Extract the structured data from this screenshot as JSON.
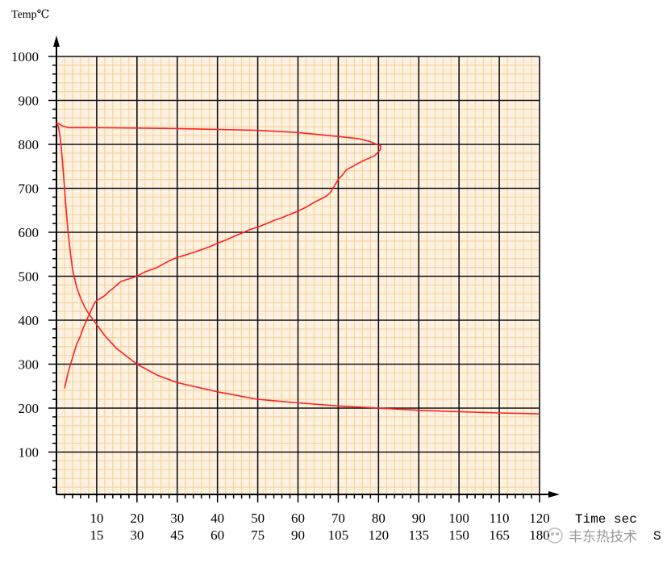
{
  "chart_data": {
    "type": "line",
    "ylabel": "Temp℃",
    "xlabel": "Time sec",
    "ylim": [
      0,
      1000
    ],
    "xlim": [
      0,
      120
    ],
    "y_ticks": [
      "100",
      "200",
      "300",
      "400",
      "500",
      "600",
      "700",
      "800",
      "900",
      "1000"
    ],
    "x_ticks_row1": [
      "10",
      "20",
      "30",
      "40",
      "50",
      "60",
      "70",
      "80",
      "90",
      "100",
      "110",
      "120"
    ],
    "x_ticks_row2": [
      "15",
      "30",
      "45",
      "60",
      "75",
      "90",
      "105",
      "120",
      "135",
      "150",
      "165",
      "180"
    ],
    "x_unit_row2": "S",
    "grid": true,
    "watermark": "丰东热技术",
    "series": [
      {
        "color": "#ff2020",
        "x": [
          0,
          1.5,
          3,
          5,
          10,
          20,
          30,
          40,
          50,
          60,
          70,
          75,
          78,
          79.5,
          80.5,
          80.5,
          79,
          76,
          74,
          72,
          71,
          70,
          69,
          68,
          67,
          66,
          64,
          62,
          60,
          58,
          56,
          54,
          52,
          50,
          48,
          46,
          44,
          42,
          40,
          38,
          35,
          32,
          30,
          28,
          25,
          22,
          20,
          18,
          16,
          15,
          14,
          13,
          12,
          11,
          10,
          9.5,
          9,
          8.5,
          8,
          7.5,
          7,
          6.5,
          6,
          5.5,
          5,
          4.5,
          4,
          3.5,
          3,
          2.5,
          2
        ],
        "y": [
          850,
          842,
          838,
          838,
          838,
          837,
          836,
          834,
          832,
          827,
          818,
          813,
          806,
          800,
          797,
          788,
          774,
          762,
          752,
          742,
          730,
          720,
          705,
          690,
          682,
          677,
          668,
          657,
          648,
          641,
          633,
          627,
          619,
          612,
          606,
          598,
          590,
          582,
          575,
          567,
          557,
          548,
          543,
          535,
          520,
          510,
          500,
          494,
          488,
          480,
          472,
          465,
          456,
          450,
          445,
          440,
          430,
          420,
          410,
          400,
          390,
          378,
          365,
          355,
          345,
          330,
          315,
          300,
          285,
          265,
          245
        ]
      },
      {
        "color": "#ff2020",
        "x": [
          0,
          0.5,
          1,
          1.5,
          2,
          2.5,
          3,
          3.5,
          4,
          5,
          6,
          7,
          8,
          10,
          12,
          15,
          20,
          25,
          30,
          40,
          50,
          60,
          70,
          80,
          90,
          100,
          110,
          120
        ],
        "y": [
          850,
          840,
          810,
          760,
          700,
          640,
          590,
          550,
          515,
          475,
          450,
          430,
          415,
          390,
          365,
          335,
          300,
          275,
          258,
          237,
          220,
          212,
          205,
          200,
          195,
          192,
          189,
          187
        ]
      }
    ]
  }
}
